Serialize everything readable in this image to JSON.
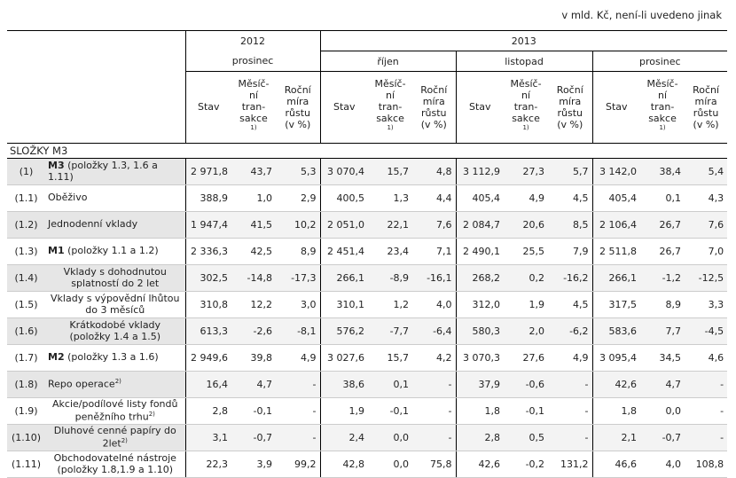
{
  "units_note": "v mld. Kč, není-li uvedeno jinak",
  "header": {
    "year_2012": "2012",
    "month_2012": "prosinec",
    "year_2013": "2013",
    "months_2013": [
      "říjen",
      "listopad",
      "prosinec"
    ],
    "col_stav": "Stav",
    "col_mes_lines": [
      "Měsíč-",
      "ní",
      "tran-",
      "sakce"
    ],
    "col_mes_note": "1)",
    "col_rocni_lines": [
      "Roční",
      "míra",
      "růstu",
      "(v %)"
    ]
  },
  "section_title": "SLOŽKY M3",
  "rows": [
    {
      "code": "(1)",
      "bold": "M3",
      "label": " (položky 1.3, 1.6 a 1.11)",
      "align": "left",
      "shade": true,
      "values": [
        "2 971,8",
        "43,7",
        "5,3",
        "3 070,4",
        "15,7",
        "4,8",
        "3 112,9",
        "27,3",
        "5,7",
        "3 142,0",
        "38,4",
        "5,4"
      ]
    },
    {
      "code": "(1.1)",
      "bold": "",
      "label": "Oběživo",
      "align": "left",
      "shade": false,
      "values": [
        "388,9",
        "1,0",
        "2,9",
        "400,5",
        "1,3",
        "4,4",
        "405,4",
        "4,9",
        "4,5",
        "405,4",
        "0,1",
        "4,3"
      ]
    },
    {
      "code": "(1.2)",
      "bold": "",
      "label": "Jednodenní vklady",
      "align": "left",
      "shade": true,
      "values": [
        "1 947,4",
        "41,5",
        "10,2",
        "2 051,0",
        "22,1",
        "7,6",
        "2 084,7",
        "20,6",
        "8,5",
        "2 106,4",
        "26,7",
        "7,6"
      ]
    },
    {
      "code": "(1.3)",
      "bold": "M1",
      "label": " (položky 1.1 a 1.2)",
      "align": "left",
      "shade": false,
      "values": [
        "2 336,3",
        "42,5",
        "8,9",
        "2 451,4",
        "23,4",
        "7,1",
        "2 490,1",
        "25,5",
        "7,9",
        "2 511,8",
        "26,7",
        "7,0"
      ]
    },
    {
      "code": "(1.4)",
      "bold": "",
      "label": "Vklady s dohodnutou splatností do 2 let",
      "align": "center",
      "shade": true,
      "values": [
        "302,5",
        "-14,8",
        "-17,3",
        "266,1",
        "-8,9",
        "-16,1",
        "268,2",
        "0,2",
        "-16,2",
        "266,1",
        "-1,2",
        "-12,5"
      ]
    },
    {
      "code": "(1.5)",
      "bold": "",
      "label": "Vklady s výpovědní lhůtou do 3 měsíců",
      "align": "center",
      "shade": false,
      "values": [
        "310,8",
        "12,2",
        "3,0",
        "310,1",
        "1,2",
        "4,0",
        "312,0",
        "1,9",
        "4,5",
        "317,5",
        "8,9",
        "3,3"
      ]
    },
    {
      "code": "(1.6)",
      "bold": "",
      "label": "Krátkodobé vklady (položky 1.4 a 1.5)",
      "align": "center",
      "shade": true,
      "values": [
        "613,3",
        "-2,6",
        "-8,1",
        "576,2",
        "-7,7",
        "-6,4",
        "580,3",
        "2,0",
        "-6,2",
        "583,6",
        "7,7",
        "-4,5"
      ]
    },
    {
      "code": "(1.7)",
      "bold": "M2",
      "label": " (položky 1.3 a 1.6)",
      "align": "left",
      "shade": false,
      "values": [
        "2 949,6",
        "39,8",
        "4,9",
        "3 027,6",
        "15,7",
        "4,2",
        "3 070,3",
        "27,6",
        "4,9",
        "3 095,4",
        "34,5",
        "4,6"
      ]
    },
    {
      "code": "(1.8)",
      "bold": "",
      "label": "Repo operace",
      "sup": "2)",
      "align": "left",
      "shade": true,
      "values": [
        "16,4",
        "4,7",
        "-",
        "38,6",
        "0,1",
        "-",
        "37,9",
        "-0,6",
        "-",
        "42,6",
        "4,7",
        "-"
      ]
    },
    {
      "code": "(1.9)",
      "bold": "",
      "label": "Akcie/podílové listy fondů peněžního trhu",
      "sup": "2)",
      "align": "center",
      "shade": false,
      "values": [
        "2,8",
        "-0,1",
        "-",
        "1,9",
        "-0,1",
        "-",
        "1,8",
        "-0,1",
        "-",
        "1,8",
        "0,0",
        "-"
      ]
    },
    {
      "code": "(1.10)",
      "bold": "",
      "label": "Dluhové cenné papíry do 2let",
      "sup": "2)",
      "align": "center",
      "shade": true,
      "values": [
        "3,1",
        "-0,7",
        "-",
        "2,4",
        "0,0",
        "-",
        "2,8",
        "0,5",
        "-",
        "2,1",
        "-0,7",
        "-"
      ]
    },
    {
      "code": "(1.11)",
      "bold": "",
      "label": "Obchodovatelné nástroje (položky 1.8,1.9 a 1.10)",
      "align": "center",
      "shade": false,
      "values": [
        "22,3",
        "3,9",
        "99,2",
        "42,8",
        "0,0",
        "75,8",
        "42,6",
        "-0,2",
        "131,2",
        "46,6",
        "4,0",
        "108,8"
      ]
    }
  ]
}
